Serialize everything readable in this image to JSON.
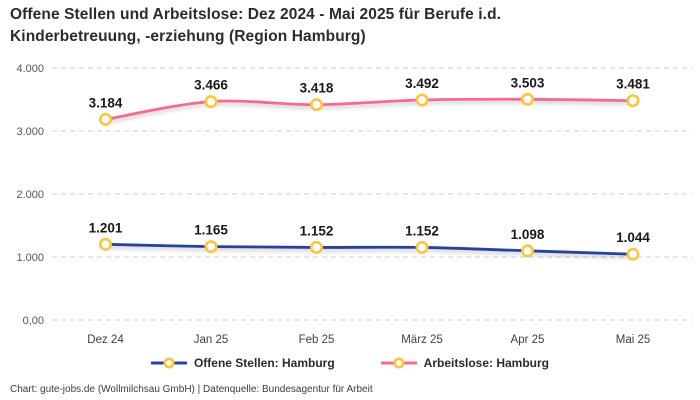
{
  "header": {
    "title": "Offene Stellen und Arbeitslose: Dez 2024 - Mai 2025 für Berufe i.d.\nKinderbetreuung, -erziehung (Region Hamburg)"
  },
  "chart_data": {
    "type": "line",
    "title": "Offene Stellen und Arbeitslose: Dez 2024 - Mai 2025 für Berufe i.d. Kinderbetreuung, -erziehung (Region Hamburg)",
    "categories": [
      "Dez 24",
      "Jan 25",
      "Feb 25",
      "März 25",
      "Apr 25",
      "Mai 25"
    ],
    "series": [
      {
        "name": "Offene Stellen: Hamburg",
        "color": "#2742a0",
        "values": [
          1201,
          1165,
          1152,
          1152,
          1098,
          1044
        ],
        "labels": [
          "1.201",
          "1.165",
          "1.152",
          "1.152",
          "1.098",
          "1.044"
        ]
      },
      {
        "name": "Arbeitslose: Hamburg",
        "color": "#f56a8d",
        "values": [
          3184,
          3466,
          3418,
          3492,
          3503,
          3481
        ],
        "labels": [
          "3.184",
          "3.466",
          "3.418",
          "3.492",
          "3.503",
          "3.481"
        ]
      }
    ],
    "y_ticks": [
      {
        "value": 0,
        "label": "0,00"
      },
      {
        "value": 1000,
        "label": "1.000"
      },
      {
        "value": 2000,
        "label": "2.000"
      },
      {
        "value": 3000,
        "label": "3.000"
      },
      {
        "value": 4000,
        "label": "4.000"
      }
    ],
    "ylim": [
      0,
      4000
    ],
    "xlabel": "",
    "ylabel": "",
    "grid": "horizontal-dashed",
    "line_style": "smooth",
    "legend_position": "bottom",
    "marker": {
      "fill": "#ffffff",
      "stroke": "#ffc43d"
    },
    "colors": {
      "grid": "#cfcfcf",
      "axis_text": "#555555",
      "data_label": "#191919"
    }
  },
  "footer": {
    "credit": "Chart: gute-jobs.de (Wollmilchsau GmbH) | Datenquelle: Bundesagentur für Arbeit"
  }
}
